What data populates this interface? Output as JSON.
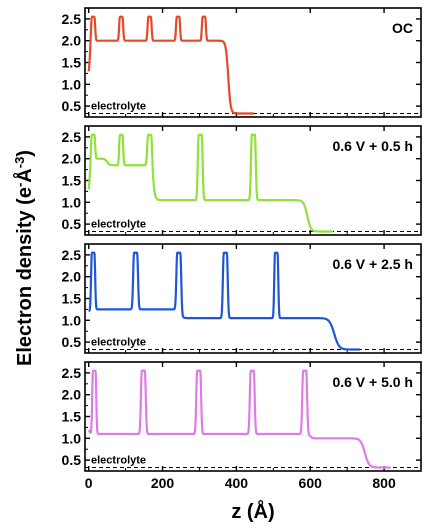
{
  "chart_data": {
    "type": "line",
    "xlabel": "z (Å)",
    "ylabel_main": "Electron density (e",
    "ylabel_sup": "-",
    "ylabel_unit": "Å",
    "ylabel_unit_sup": "-3",
    "ylabel_close": ")",
    "xlim": [
      -10,
      900
    ],
    "ylim": [
      0.25,
      2.75
    ],
    "xticks": [
      0,
      200,
      400,
      600,
      800
    ],
    "yticks": [
      0.5,
      1.0,
      1.5,
      2.0,
      2.5
    ],
    "ytick_labels": [
      "0.5",
      "1.0",
      "1.5",
      "2.0",
      "2.5"
    ],
    "reference_level": 0.33,
    "reference_label": "electrolyte",
    "panels": [
      {
        "label": "OC",
        "color": "#e8482a",
        "start": 1.2,
        "bulk_level": 2.0,
        "peaks": [
          {
            "z": 12,
            "h": 2.55,
            "w": 10
          },
          {
            "z": 88,
            "h": 2.55,
            "w": 10
          },
          {
            "z": 165,
            "h": 2.55,
            "w": 10
          },
          {
            "z": 242,
            "h": 2.55,
            "w": 10
          },
          {
            "z": 312,
            "h": 2.55,
            "w": 10
          }
        ],
        "steps": [
          {
            "z": 0,
            "level": 2.0
          }
        ],
        "edge": {
          "z": 378,
          "level_before": 2.0,
          "width": 8
        }
      },
      {
        "label": "0.6 V + 0.5 h",
        "color": "#8fe23a",
        "start": 1.2,
        "bulk_level": 1.05,
        "peaks": [
          {
            "z": 12,
            "h": 2.55,
            "w": 10
          },
          {
            "z": 88,
            "h": 2.55,
            "w": 10
          },
          {
            "z": 165,
            "h": 2.55,
            "w": 12
          },
          {
            "z": 302,
            "h": 2.55,
            "w": 12
          },
          {
            "z": 446,
            "h": 2.55,
            "w": 12
          }
        ],
        "steps": [
          {
            "z": 0,
            "level": 2.0
          },
          {
            "z": 50,
            "level": 1.85
          },
          {
            "z": 175,
            "level": 1.05
          }
        ],
        "edge": {
          "z": 592,
          "level_before": 1.05,
          "width": 12
        }
      },
      {
        "label": "0.6 V + 2.5 h",
        "color": "#1f56d6",
        "start": 1.2,
        "bulk_level": 1.05,
        "peaks": [
          {
            "z": 12,
            "h": 2.55,
            "w": 10
          },
          {
            "z": 127,
            "h": 2.55,
            "w": 12
          },
          {
            "z": 244,
            "h": 2.55,
            "w": 12
          },
          {
            "z": 370,
            "h": 2.55,
            "w": 12
          },
          {
            "z": 508,
            "h": 2.55,
            "w": 10
          }
        ],
        "steps": [
          {
            "z": 0,
            "level": 1.25
          },
          {
            "z": 250,
            "level": 1.05
          }
        ],
        "edge": {
          "z": 665,
          "level_before": 1.05,
          "width": 16
        }
      },
      {
        "label": "0.6 V + 5.0 h",
        "color": "#e07ae6",
        "start": 1.2,
        "bulk_level": 1.0,
        "peaks": [
          {
            "z": 15,
            "h": 2.55,
            "w": 10
          },
          {
            "z": 148,
            "h": 2.55,
            "w": 12
          },
          {
            "z": 298,
            "h": 2.55,
            "w": 12
          },
          {
            "z": 443,
            "h": 2.55,
            "w": 12
          },
          {
            "z": 585,
            "h": 2.55,
            "w": 12
          }
        ],
        "steps": [
          {
            "z": 0,
            "level": 1.1
          },
          {
            "z": 450,
            "level": 1.1
          },
          {
            "z": 600,
            "level": 1.0
          }
        ],
        "edge": {
          "z": 748,
          "level_before": 1.0,
          "width": 14
        }
      }
    ]
  }
}
